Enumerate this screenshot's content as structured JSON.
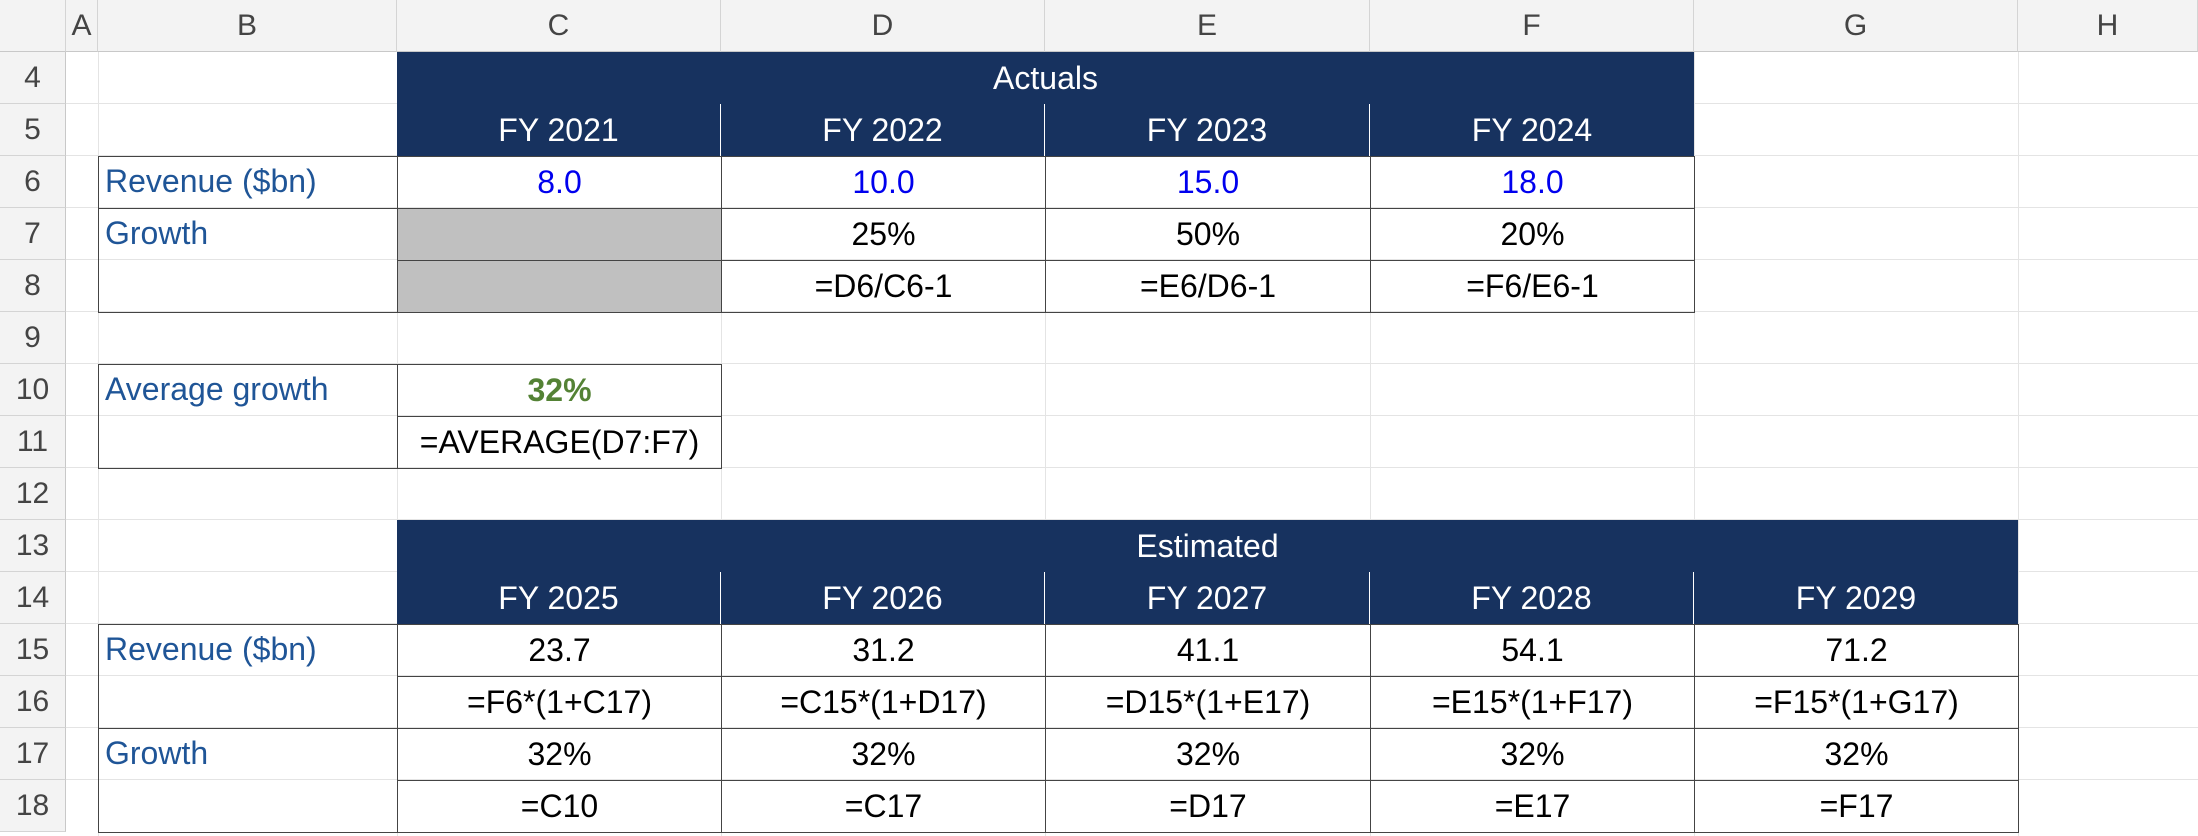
{
  "columns": [
    "A",
    "B",
    "C",
    "D",
    "E",
    "F",
    "G",
    "H"
  ],
  "rows": [
    "4",
    "5",
    "6",
    "7",
    "8",
    "9",
    "10",
    "11",
    "12",
    "13",
    "14",
    "15",
    "16",
    "17",
    "18"
  ],
  "actuals": {
    "title": "Actuals",
    "years": [
      "FY 2021",
      "FY 2022",
      "FY 2023",
      "FY 2024"
    ],
    "revenue_label": "Revenue ($bn)",
    "revenue": [
      "8.0",
      "10.0",
      "15.0",
      "18.0"
    ],
    "growth_label": "Growth",
    "growth": [
      "25%",
      "50%",
      "20%"
    ],
    "growth_formulas": [
      "=D6/C6-1",
      "=E6/D6-1",
      "=F6/E6-1"
    ]
  },
  "average": {
    "label": "Average growth",
    "value": "32%",
    "formula": "=AVERAGE(D7:F7)"
  },
  "estimated": {
    "title": "Estimated",
    "years": [
      "FY 2025",
      "FY 2026",
      "FY 2027",
      "FY 2028",
      "FY 2029"
    ],
    "revenue_label": "Revenue ($bn)",
    "revenue": [
      "23.7",
      "31.2",
      "41.1",
      "54.1",
      "71.2"
    ],
    "revenue_formulas": [
      "=F6*(1+C17)",
      "=C15*(1+D17)",
      "=D15*(1+E17)",
      "=E15*(1+F17)",
      "=F15*(1+G17)"
    ],
    "growth_label": "Growth",
    "growth": [
      "32%",
      "32%",
      "32%",
      "32%",
      "32%"
    ],
    "growth_formulas": [
      "=C10",
      "=C17",
      "=D17",
      "=E17",
      "=F17"
    ]
  },
  "colors": {
    "header_fill": "#17325f",
    "label_text": "#1f5597",
    "input_text": "#0000ee",
    "highlight_text": "#548235"
  }
}
